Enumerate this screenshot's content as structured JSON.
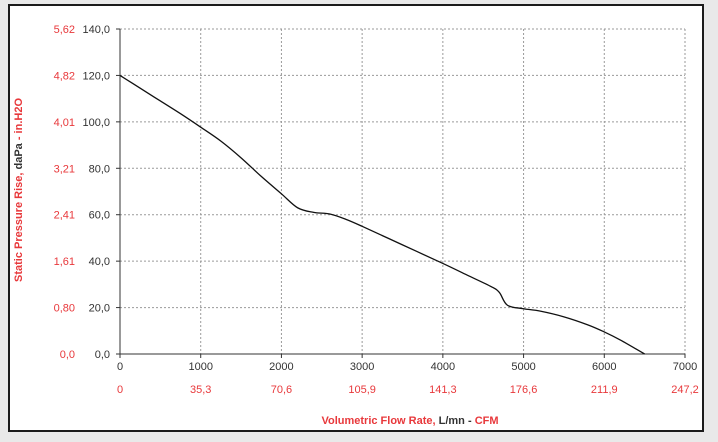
{
  "chart_data": {
    "type": "line",
    "title": "",
    "x": [
      0,
      250,
      500,
      750,
      1000,
      1250,
      1500,
      1750,
      2000,
      2200,
      2400,
      2600,
      2800,
      3000,
      3500,
      4000,
      4300,
      4600,
      4700,
      4800,
      5000,
      5200,
      5500,
      5800,
      6000,
      6200,
      6500
    ],
    "series": [
      {
        "values": [
          120.0,
          114.5,
          109.0,
          103.5,
          97.7,
          91.7,
          84.5,
          76.5,
          69.0,
          63.0,
          61.0,
          60.3,
          58.0,
          55.0,
          47.0,
          39.0,
          34.0,
          29.0,
          26.5,
          21.0,
          19.5,
          18.5,
          16.0,
          12.5,
          9.5,
          6.0,
          0.0
        ]
      }
    ],
    "xlim": [
      0,
      7000
    ],
    "ylim": [
      0,
      140
    ],
    "x_ticks": [
      "0",
      "1000",
      "2000",
      "3000",
      "4000",
      "5000",
      "6000",
      "7000"
    ],
    "x2_ticks": [
      "0",
      "35,3",
      "70,6",
      "105,9",
      "141,3",
      "176,6",
      "211,9",
      "247,2"
    ],
    "y_ticks": [
      "0,0",
      "20,0",
      "40,0",
      "60,0",
      "80,0",
      "100,0",
      "120,0",
      "140,0"
    ],
    "y2_ticks": [
      "0,0",
      "0,80",
      "1,61",
      "2,41",
      "3,21",
      "4,01",
      "4,82",
      "5,62"
    ],
    "xlabel": {
      "part1": "Volumetric Flow Rate, ",
      "part2": "L/mn",
      "part3": " - ",
      "part4": "CFM"
    },
    "ylabel": {
      "part1": "Static Pressure Rise, ",
      "part2": "daPa",
      "part3": " - ",
      "part4": "in.H2O"
    },
    "grid": true,
    "colors": {
      "line": "#111111",
      "grid": "#9a9a9a",
      "red": "#e8383b",
      "dark": "#333333"
    }
  }
}
